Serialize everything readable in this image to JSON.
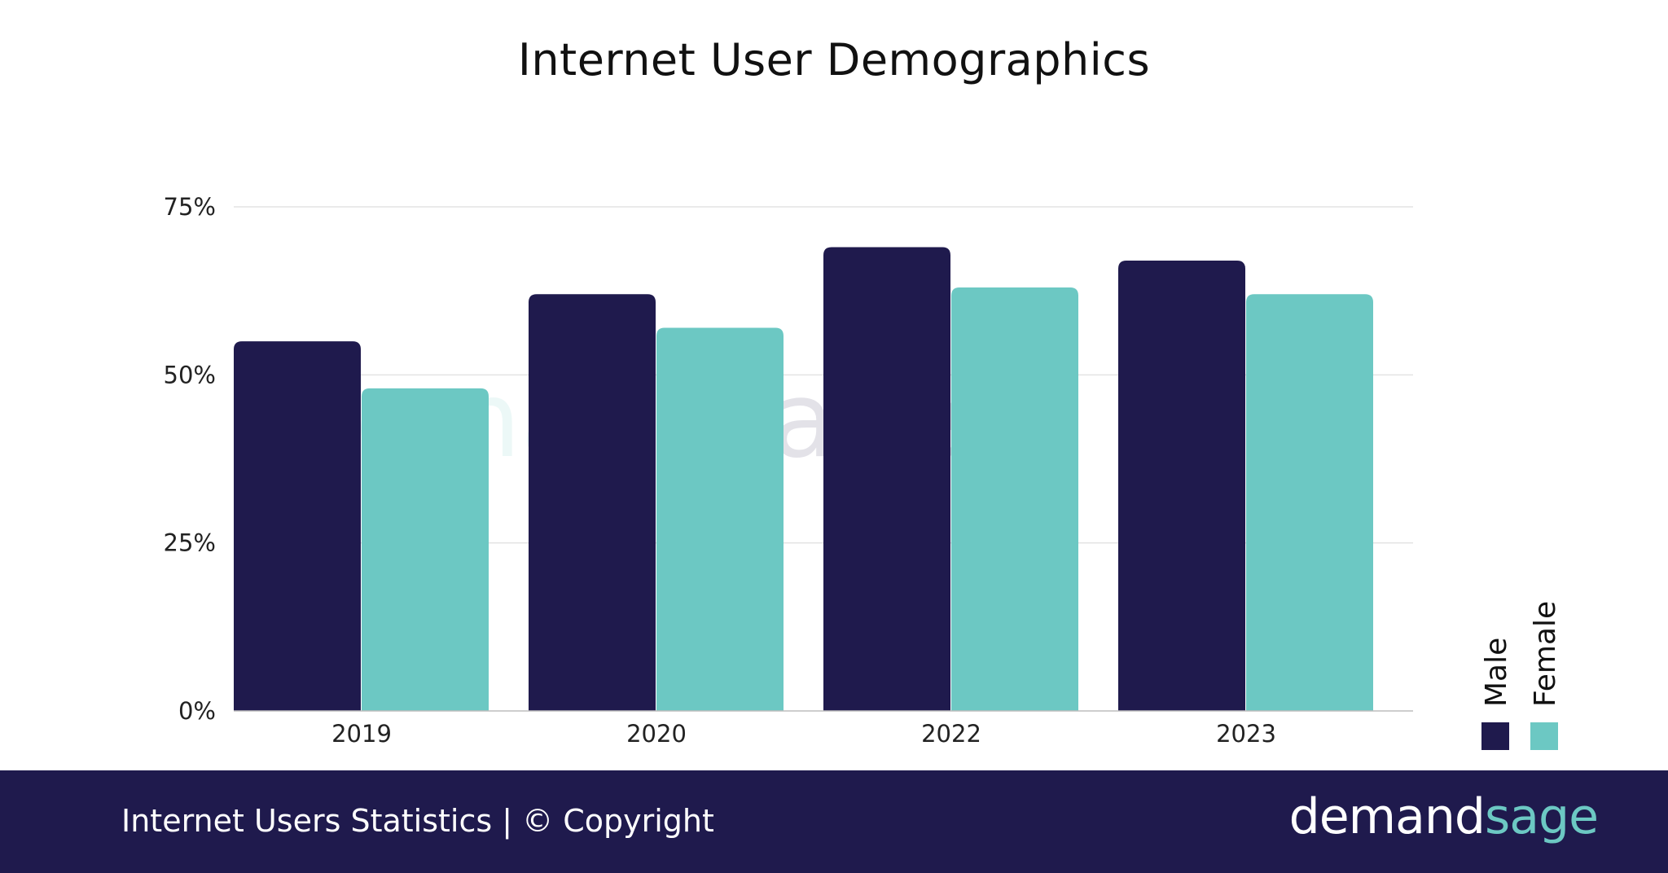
{
  "chart_data": {
    "type": "bar",
    "title": "Internet User Demographics",
    "categories": [
      "2019",
      "2020",
      "2022",
      "2023"
    ],
    "series": [
      {
        "name": "Male",
        "values": [
          55,
          62,
          69,
          67
        ],
        "color": "#1f1a4d"
      },
      {
        "name": "Female",
        "values": [
          48,
          57,
          63,
          62
        ],
        "color": "#6cc8c3"
      }
    ],
    "y_ticks": [
      "0%",
      "25%",
      "50%",
      "75%"
    ],
    "y_tick_values": [
      0,
      25,
      50,
      75
    ],
    "ylim": [
      0,
      75
    ],
    "grid": true,
    "legend_position": "bottom-right"
  },
  "watermark": {
    "part1": "demand",
    "part2": "sage"
  },
  "footer": {
    "caption": "Internet Users Statistics | © Copyright",
    "brand_part1": "demand",
    "brand_part2": "sage"
  }
}
